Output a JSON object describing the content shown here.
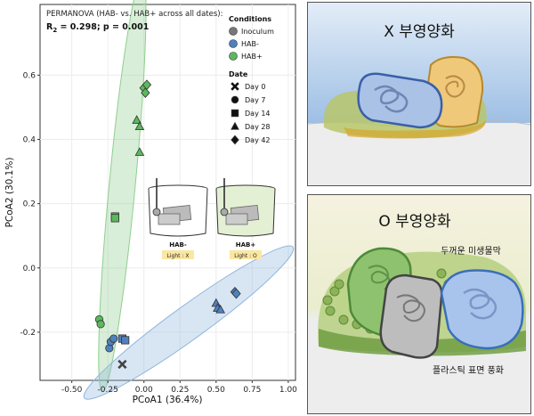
{
  "chart_data": {
    "type": "scatter",
    "title": "PERMANOVA (HAB- vs. HAB+ across all dates):",
    "subtitle_prefix": "R",
    "subtitle_sub": "2",
    "subtitle_rest": " = 0.298; p = 0.001",
    "xlabel": "PCoA1 (36.4%)",
    "ylabel": "PCoA2 (30.1%)",
    "xlim": [
      -0.72,
      1.05
    ],
    "ylim": [
      -0.35,
      0.82
    ],
    "x_ticks": [
      "-0.50",
      "-0.25",
      "0.00",
      "0.25",
      "0.50",
      "0.75",
      "1.00"
    ],
    "x_tick_values": [
      -0.5,
      -0.25,
      0,
      0.25,
      0.5,
      0.75,
      1.0
    ],
    "y_ticks": [
      "-0.2",
      "0.0",
      "0.2",
      "0.4",
      "0.6"
    ],
    "y_tick_values": [
      -0.2,
      0,
      0.2,
      0.4,
      0.6
    ],
    "grid": true,
    "legend": {
      "conditions_title": "Conditions",
      "conditions": [
        {
          "label": "Inoculum",
          "color": "#777777"
        },
        {
          "label": "HAB-",
          "color": "#4f81bd"
        },
        {
          "label": "HAB+",
          "color": "#5cb85c"
        }
      ],
      "date_title": "Date",
      "dates": [
        {
          "label": "Day 0",
          "shape": "x"
        },
        {
          "label": "Day 7",
          "shape": "circle"
        },
        {
          "label": "Day 14",
          "shape": "square"
        },
        {
          "label": "Day 28",
          "shape": "triangle"
        },
        {
          "label": "Day 42",
          "shape": "diamond"
        }
      ]
    },
    "ellipses": [
      {
        "group": "HAB+",
        "color": "#8fcf8f",
        "cx": -0.15,
        "cy": 0.26,
        "rx": 0.66,
        "ry": 0.035,
        "angle_deg": 78
      },
      {
        "group": "HAB-",
        "color": "#8fb6de",
        "cx": 0.31,
        "cy": -0.17,
        "rx": 0.76,
        "ry": 0.045,
        "angle_deg": 18
      }
    ],
    "series": [
      {
        "name": "Inoculum",
        "color": "#777777",
        "points": [
          {
            "x": -0.15,
            "y": -0.3,
            "shape": "x"
          }
        ]
      },
      {
        "name": "HAB-",
        "color": "#4f81bd",
        "points": [
          {
            "x": -0.24,
            "y": -0.25,
            "shape": "circle"
          },
          {
            "x": -0.23,
            "y": -0.23,
            "shape": "circle"
          },
          {
            "x": -0.21,
            "y": -0.22,
            "shape": "circle"
          },
          {
            "x": -0.15,
            "y": -0.22,
            "shape": "square"
          },
          {
            "x": -0.13,
            "y": -0.225,
            "shape": "square"
          },
          {
            "x": 0.5,
            "y": -0.11,
            "shape": "triangle"
          },
          {
            "x": 0.51,
            "y": -0.125,
            "shape": "triangle"
          },
          {
            "x": 0.53,
            "y": -0.13,
            "shape": "triangle"
          },
          {
            "x": 0.63,
            "y": -0.075,
            "shape": "diamond"
          },
          {
            "x": 0.64,
            "y": -0.08,
            "shape": "diamond"
          }
        ]
      },
      {
        "name": "HAB+",
        "color": "#5cb85c",
        "points": [
          {
            "x": -0.31,
            "y": -0.16,
            "shape": "circle"
          },
          {
            "x": -0.3,
            "y": -0.175,
            "shape": "circle"
          },
          {
            "x": -0.2,
            "y": 0.16,
            "shape": "square"
          },
          {
            "x": -0.2,
            "y": 0.155,
            "shape": "square"
          },
          {
            "x": -0.05,
            "y": 0.46,
            "shape": "triangle"
          },
          {
            "x": -0.03,
            "y": 0.44,
            "shape": "triangle"
          },
          {
            "x": -0.03,
            "y": 0.36,
            "shape": "triangle"
          },
          {
            "x": 0.0,
            "y": 0.56,
            "shape": "diamond"
          },
          {
            "x": 0.01,
            "y": 0.545,
            "shape": "diamond"
          },
          {
            "x": 0.02,
            "y": 0.57,
            "shape": "diamond"
          }
        ]
      }
    ],
    "inset": {
      "labels": [
        "HAB-",
        "HAB+"
      ],
      "tags": [
        "Light : X",
        "Light : O"
      ]
    }
  },
  "panels": {
    "top_title": "X 부영양화",
    "bottom_title": "O 부영양화",
    "biofilm_label": "두꺼운 미생물막",
    "weathering_label": "플라스틱 표면 풍화"
  }
}
